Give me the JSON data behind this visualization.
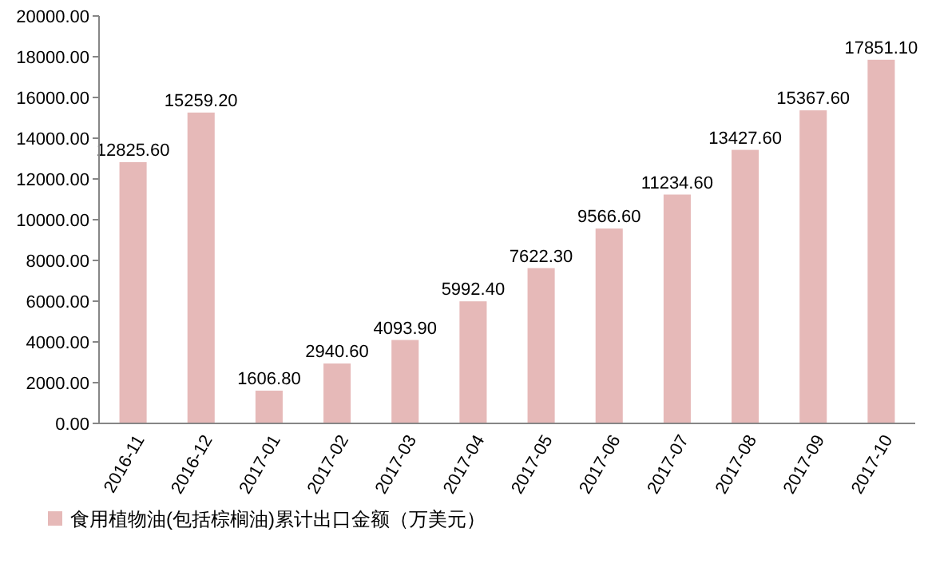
{
  "chart_data": {
    "type": "bar",
    "categories": [
      "2016-11",
      "2016-12",
      "2017-01",
      "2017-02",
      "2017-03",
      "2017-04",
      "2017-05",
      "2017-06",
      "2017-07",
      "2017-08",
      "2017-09",
      "2017-10"
    ],
    "series": [
      {
        "name": "食用植物油(包括棕榈油)累计出口金额（万美元）",
        "color": "#e6b9b8",
        "values": [
          12825.6,
          15259.2,
          1606.8,
          2940.6,
          4093.9,
          5992.4,
          7622.3,
          9566.6,
          11234.6,
          13427.6,
          15367.6,
          17851.1
        ],
        "value_labels": [
          "12825.60",
          "15259.20",
          "1606.80",
          "2940.60",
          "4093.90",
          "5992.40",
          "7622.30",
          "9566.60",
          "11234.60",
          "13427.60",
          "15367.60",
          "17851.10"
        ]
      }
    ],
    "ylim": [
      0,
      20000
    ],
    "yticks": [
      {
        "value": 0,
        "label": "0.00"
      },
      {
        "value": 2000,
        "label": "2000.00"
      },
      {
        "value": 4000,
        "label": "4000.00"
      },
      {
        "value": 6000,
        "label": "6000.00"
      },
      {
        "value": 8000,
        "label": "8000.00"
      },
      {
        "value": 10000,
        "label": "10000.00"
      },
      {
        "value": 12000,
        "label": "12000.00"
      },
      {
        "value": 14000,
        "label": "14000.00"
      },
      {
        "value": 16000,
        "label": "16000.00"
      },
      {
        "value": 18000,
        "label": "18000.00"
      },
      {
        "value": 20000,
        "label": "20000.00"
      }
    ],
    "grid": false,
    "legend": "bottom left"
  }
}
